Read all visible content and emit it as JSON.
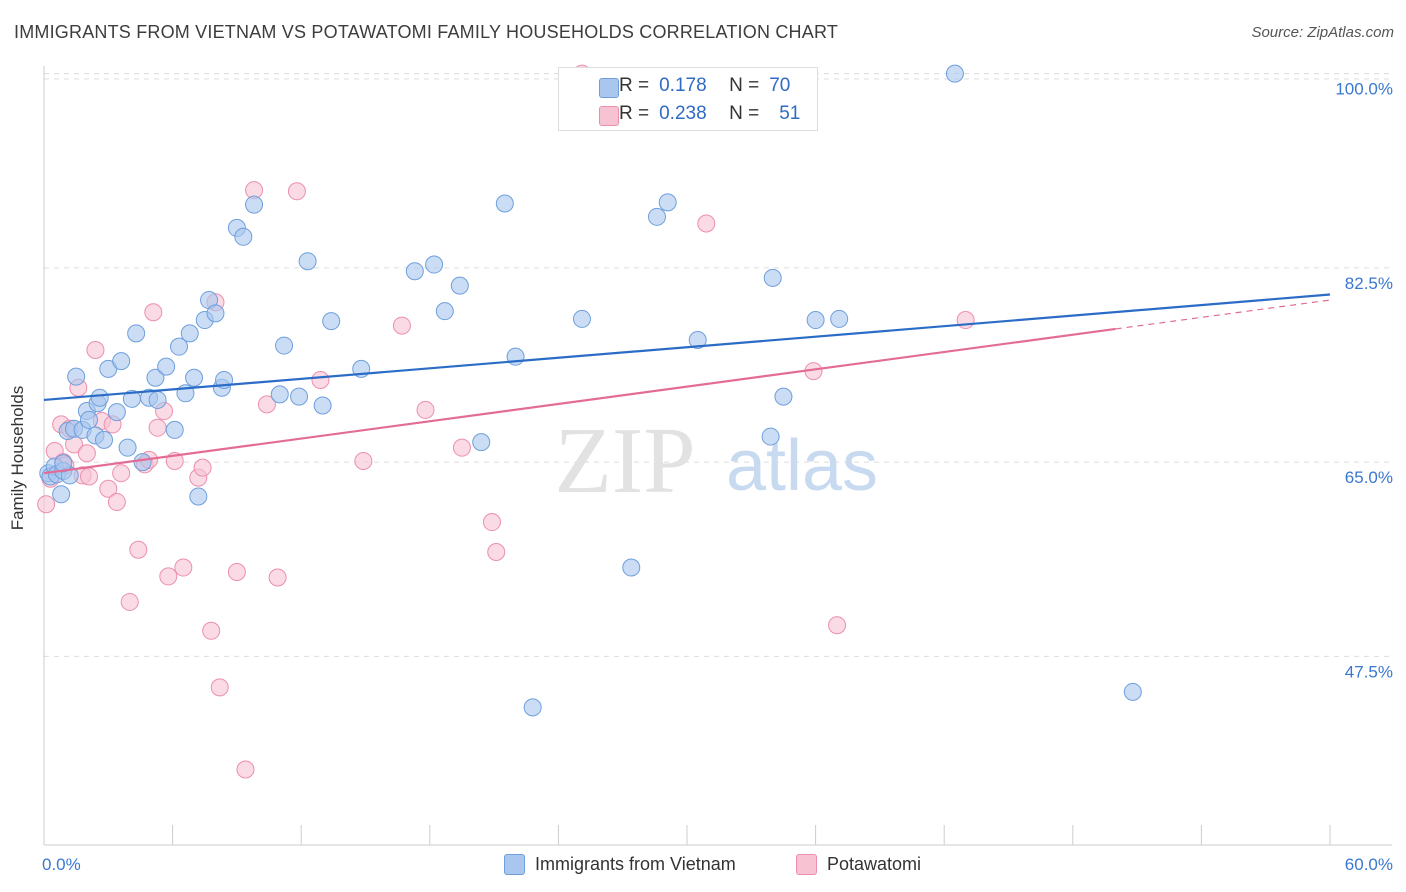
{
  "header": {
    "title": "IMMIGRANTS FROM VIETNAM VS POTAWATOMI FAMILY HOUSEHOLDS CORRELATION CHART",
    "source": "Source: ZipAtlas.com"
  },
  "legend_top": {
    "rows": [
      {
        "r_label": "R =",
        "r_value": "0.178",
        "n_label": "N =",
        "n_value": "70"
      },
      {
        "r_label": "R =",
        "r_value": "0.238",
        "n_label": "N =",
        "n_value": "51"
      }
    ]
  },
  "legend_bottom": {
    "items": [
      "Immigrants from Vietnam",
      "Potawatomi"
    ]
  },
  "watermark": {
    "zip": "ZIP",
    "atlas": "atlas"
  },
  "colors": {
    "blue_fill": "#a9c7ee",
    "blue_stroke": "#6e9fdc",
    "blue_line": "#2b6cc7",
    "pink_fill": "#f7c3d3",
    "pink_stroke": "#ec8fad",
    "pink_line": "#e36c96",
    "axis_label": "#3a78cf"
  },
  "chart_data": {
    "type": "scatter",
    "title": "IMMIGRANTS FROM VIETNAM VS POTAWATOMI FAMILY HOUSEHOLDS CORRELATION CHART",
    "xlabel": "",
    "ylabel": "Family Households",
    "xlim": [
      0,
      60
    ],
    "ylim": [
      30.5,
      101.5
    ],
    "x_tick_labels": [
      {
        "value": 0,
        "label": "0.0%"
      },
      {
        "value": 60,
        "label": "60.0%"
      }
    ],
    "y_tick_labels": [
      {
        "value": 47.5,
        "label": "47.5%"
      },
      {
        "value": 65.0,
        "label": "65.0%"
      },
      {
        "value": 82.5,
        "label": "82.5%"
      },
      {
        "value": 100.0,
        "label": "100.0%"
      }
    ],
    "grid": true,
    "series": [
      {
        "name": "Immigrants from Vietnam",
        "R": 0.178,
        "N": 70,
        "trend": {
          "x": [
            0,
            60
          ],
          "y": [
            70.6,
            80.1
          ],
          "dashed_from": null
        },
        "points": [
          [
            0.2,
            64.0
          ],
          [
            0.3,
            63.7
          ],
          [
            0.5,
            64.6
          ],
          [
            0.6,
            63.9
          ],
          [
            0.8,
            62.1
          ],
          [
            0.9,
            64.2
          ],
          [
            1.1,
            67.8
          ],
          [
            1.2,
            63.8
          ],
          [
            1.4,
            68.0
          ],
          [
            1.5,
            72.7
          ],
          [
            1.8,
            67.9
          ],
          [
            2.0,
            69.6
          ],
          [
            2.1,
            68.8
          ],
          [
            2.4,
            67.4
          ],
          [
            2.5,
            70.3
          ],
          [
            2.6,
            70.8
          ],
          [
            2.8,
            67.0
          ],
          [
            3.0,
            73.4
          ],
          [
            3.4,
            69.5
          ],
          [
            3.6,
            74.1
          ],
          [
            3.9,
            66.3
          ],
          [
            4.1,
            70.7
          ],
          [
            4.3,
            76.6
          ],
          [
            4.6,
            65.0
          ],
          [
            4.9,
            70.8
          ],
          [
            5.2,
            72.6
          ],
          [
            5.3,
            70.6
          ],
          [
            5.7,
            73.6
          ],
          [
            6.1,
            67.9
          ],
          [
            6.3,
            75.4
          ],
          [
            6.6,
            71.2
          ],
          [
            6.8,
            76.6
          ],
          [
            7.0,
            72.6
          ],
          [
            7.2,
            61.9
          ],
          [
            7.5,
            77.8
          ],
          [
            7.7,
            79.6
          ],
          [
            8.0,
            78.4
          ],
          [
            8.3,
            71.7
          ],
          [
            8.4,
            72.4
          ],
          [
            9.0,
            86.1
          ],
          [
            9.3,
            85.3
          ],
          [
            9.8,
            88.2
          ],
          [
            11.0,
            71.1
          ],
          [
            11.2,
            75.5
          ],
          [
            11.9,
            70.9
          ],
          [
            12.3,
            83.1
          ],
          [
            13.0,
            70.1
          ],
          [
            13.4,
            77.7
          ],
          [
            14.8,
            73.4
          ],
          [
            17.3,
            82.2
          ],
          [
            18.2,
            82.8
          ],
          [
            18.7,
            78.6
          ],
          [
            19.4,
            80.9
          ],
          [
            20.4,
            66.8
          ],
          [
            21.5,
            88.3
          ],
          [
            22.0,
            74.5
          ],
          [
            22.8,
            42.9
          ],
          [
            25.1,
            77.9
          ],
          [
            27.4,
            55.5
          ],
          [
            28.6,
            87.1
          ],
          [
            29.1,
            88.4
          ],
          [
            30.5,
            76.0
          ],
          [
            33.9,
            67.3
          ],
          [
            34.0,
            81.6
          ],
          [
            34.5,
            70.9
          ],
          [
            36.0,
            77.8
          ],
          [
            37.1,
            77.9
          ],
          [
            42.5,
            100.0
          ],
          [
            50.8,
            44.3
          ],
          [
            0.9,
            64.9
          ]
        ]
      },
      {
        "name": "Potawatomi",
        "R": 0.238,
        "N": 51,
        "trend": {
          "x": [
            0,
            60
          ],
          "y": [
            64.0,
            79.6
          ],
          "dashed_from": 50
        },
        "points": [
          [
            0.1,
            61.2
          ],
          [
            0.3,
            63.5
          ],
          [
            0.5,
            66.0
          ],
          [
            0.8,
            68.4
          ],
          [
            0.9,
            65.0
          ],
          [
            1.0,
            64.7
          ],
          [
            1.2,
            68.0
          ],
          [
            1.4,
            66.6
          ],
          [
            1.6,
            71.7
          ],
          [
            1.8,
            63.8
          ],
          [
            2.0,
            65.8
          ],
          [
            2.1,
            63.7
          ],
          [
            2.4,
            75.1
          ],
          [
            2.7,
            68.7
          ],
          [
            3.0,
            62.6
          ],
          [
            3.2,
            68.4
          ],
          [
            3.4,
            61.4
          ],
          [
            3.6,
            64.0
          ],
          [
            4.0,
            52.4
          ],
          [
            4.4,
            57.1
          ],
          [
            4.7,
            64.8
          ],
          [
            4.9,
            65.2
          ],
          [
            5.1,
            78.5
          ],
          [
            5.3,
            68.1
          ],
          [
            5.6,
            69.6
          ],
          [
            5.8,
            54.7
          ],
          [
            6.1,
            65.1
          ],
          [
            6.5,
            55.5
          ],
          [
            7.2,
            63.6
          ],
          [
            7.4,
            64.5
          ],
          [
            7.8,
            49.8
          ],
          [
            8.0,
            79.4
          ],
          [
            8.2,
            44.7
          ],
          [
            9.0,
            55.1
          ],
          [
            9.4,
            37.3
          ],
          [
            9.8,
            89.5
          ],
          [
            10.4,
            70.2
          ],
          [
            10.9,
            54.6
          ],
          [
            11.8,
            89.4
          ],
          [
            12.9,
            72.4
          ],
          [
            14.9,
            65.1
          ],
          [
            16.7,
            77.3
          ],
          [
            17.8,
            69.7
          ],
          [
            19.5,
            66.3
          ],
          [
            20.9,
            59.6
          ],
          [
            21.1,
            56.9
          ],
          [
            25.1,
            100.0
          ],
          [
            30.9,
            86.5
          ],
          [
            35.9,
            73.2
          ],
          [
            37.0,
            50.3
          ],
          [
            43.0,
            77.8
          ]
        ]
      }
    ]
  }
}
